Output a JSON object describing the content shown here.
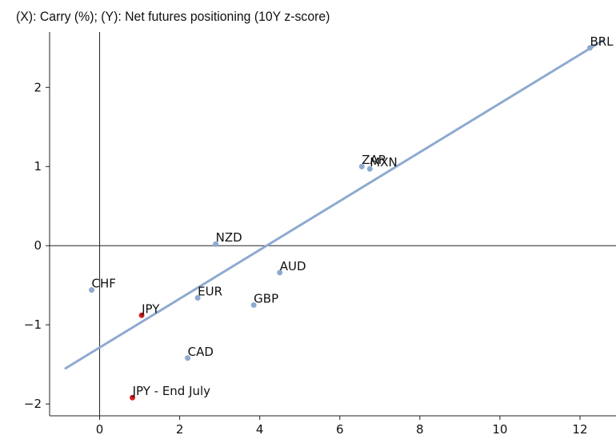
{
  "chart_data": {
    "type": "scatter",
    "title": "(X): Carry (%); (Y): Net futures positioning (10Y z-score)",
    "xlim": [
      -1.25,
      12.9
    ],
    "ylim": [
      -2.15,
      2.7
    ],
    "xticks": [
      0,
      2,
      4,
      6,
      8,
      10,
      12
    ],
    "yticks": [
      -2,
      -1,
      0,
      1,
      2
    ],
    "xtick_labels": [
      "0",
      "2",
      "4",
      "6",
      "8",
      "10",
      "12"
    ],
    "ytick_labels": [
      "−2",
      "−1",
      "0",
      "1",
      "2"
    ],
    "reference_lines": {
      "x": 0,
      "y": 0
    },
    "trend_line": {
      "x": [
        -0.85,
        12.6
      ],
      "y": [
        -1.55,
        2.6
      ],
      "color": "#8faad0"
    },
    "colors": {
      "default": "#8faad0",
      "highlight": "#d62020"
    },
    "points": [
      {
        "label": "BRL",
        "x": 12.25,
        "y": 2.5,
        "highlight": false
      },
      {
        "label": "ZAR",
        "x": 6.55,
        "y": 1.0,
        "highlight": false
      },
      {
        "label": "MXN",
        "x": 6.75,
        "y": 0.97,
        "highlight": false
      },
      {
        "label": "NZD",
        "x": 2.9,
        "y": 0.02,
        "highlight": false
      },
      {
        "label": "AUD",
        "x": 4.5,
        "y": -0.34,
        "highlight": false
      },
      {
        "label": "CHF",
        "x": -0.2,
        "y": -0.56,
        "highlight": false
      },
      {
        "label": "EUR",
        "x": 2.45,
        "y": -0.66,
        "highlight": false
      },
      {
        "label": "GBP",
        "x": 3.85,
        "y": -0.75,
        "highlight": false
      },
      {
        "label": "JPY",
        "x": 1.05,
        "y": -0.88,
        "highlight": true
      },
      {
        "label": "CAD",
        "x": 2.2,
        "y": -1.42,
        "highlight": false
      },
      {
        "label": "JPY - End July",
        "x": 0.82,
        "y": -1.92,
        "highlight": true
      }
    ]
  }
}
